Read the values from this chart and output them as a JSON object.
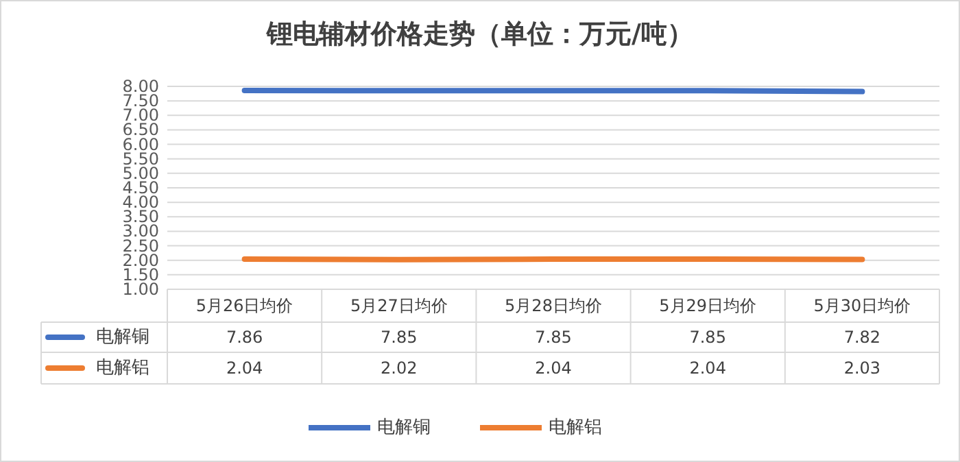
{
  "chart_data": {
    "type": "line",
    "title": "锂电辅材价格走势（单位：万元/吨）",
    "categories": [
      "5月26日均价",
      "5月27日均价",
      "5月28日均价",
      "5月29日均价",
      "5月30日均价"
    ],
    "series": [
      {
        "name": "电解铜",
        "color": "#4472c4",
        "values": [
          7.86,
          7.85,
          7.85,
          7.85,
          7.82
        ]
      },
      {
        "name": "电解铝",
        "color": "#ed7d31",
        "values": [
          2.04,
          2.02,
          2.04,
          2.04,
          2.03
        ]
      }
    ],
    "ylim": [
      1,
      8
    ],
    "yticks": [
      {
        "value": 1,
        "label": "1.00"
      },
      {
        "value": 1.5,
        "label": "1.50"
      },
      {
        "value": 2,
        "label": "2.00"
      },
      {
        "value": 2.5,
        "label": "2.50"
      },
      {
        "value": 3,
        "label": "3.00"
      },
      {
        "value": 3.5,
        "label": "3.50"
      },
      {
        "value": 4,
        "label": "4.00"
      },
      {
        "value": 4.5,
        "label": "4.50"
      },
      {
        "value": 5,
        "label": "5.00"
      },
      {
        "value": 5.5,
        "label": "5.50"
      },
      {
        "value": 6,
        "label": "6.00"
      },
      {
        "value": 6.5,
        "label": "6.50"
      },
      {
        "value": 7,
        "label": "7.00"
      },
      {
        "value": 7.5,
        "label": "7.50"
      },
      {
        "value": 8,
        "label": "8.00"
      }
    ],
    "grid": "y",
    "legend": "bottom",
    "data_labels": true,
    "marker": "none",
    "line_style": "solid"
  }
}
